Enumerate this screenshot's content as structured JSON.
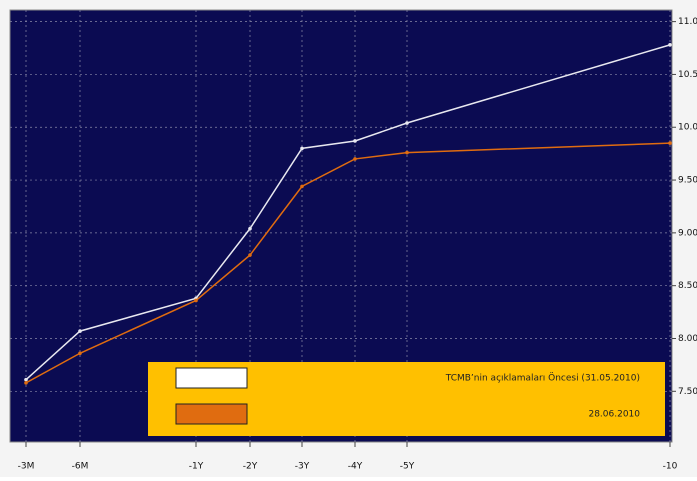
{
  "chart_data": {
    "type": "line",
    "categories": [
      "-3M",
      "-6M",
      "-1Y",
      "-2Y",
      "-3Y",
      "-4Y",
      "-5Y",
      "-10"
    ],
    "series": [
      {
        "name": "TCMB’nin açıklamaları Öncesi (31.05.2010)",
        "color": "#e8e8f0",
        "values": [
          7.61,
          8.07,
          8.38,
          9.04,
          9.8,
          9.87,
          10.04,
          10.78
        ]
      },
      {
        "name": "28.06.2010",
        "color": "#e06c10",
        "values": [
          7.58,
          7.86,
          8.36,
          8.79,
          9.44,
          9.7,
          9.76,
          9.85
        ]
      }
    ],
    "ylim": [
      7.02,
      11.11
    ],
    "yticks": [
      {
        "value": 7.5,
        "label": "7.50"
      },
      {
        "value": 8,
        "label": "8.00"
      },
      {
        "value": 8.5,
        "label": "8.50"
      },
      {
        "value": 9,
        "label": "9.00"
      },
      {
        "value": 9.5,
        "label": "9.50"
      },
      {
        "value": 10,
        "label": "10.0"
      },
      {
        "value": 10.5,
        "label": "10.5"
      },
      {
        "value": 11,
        "label": "11.0"
      }
    ],
    "grid": true
  }
}
